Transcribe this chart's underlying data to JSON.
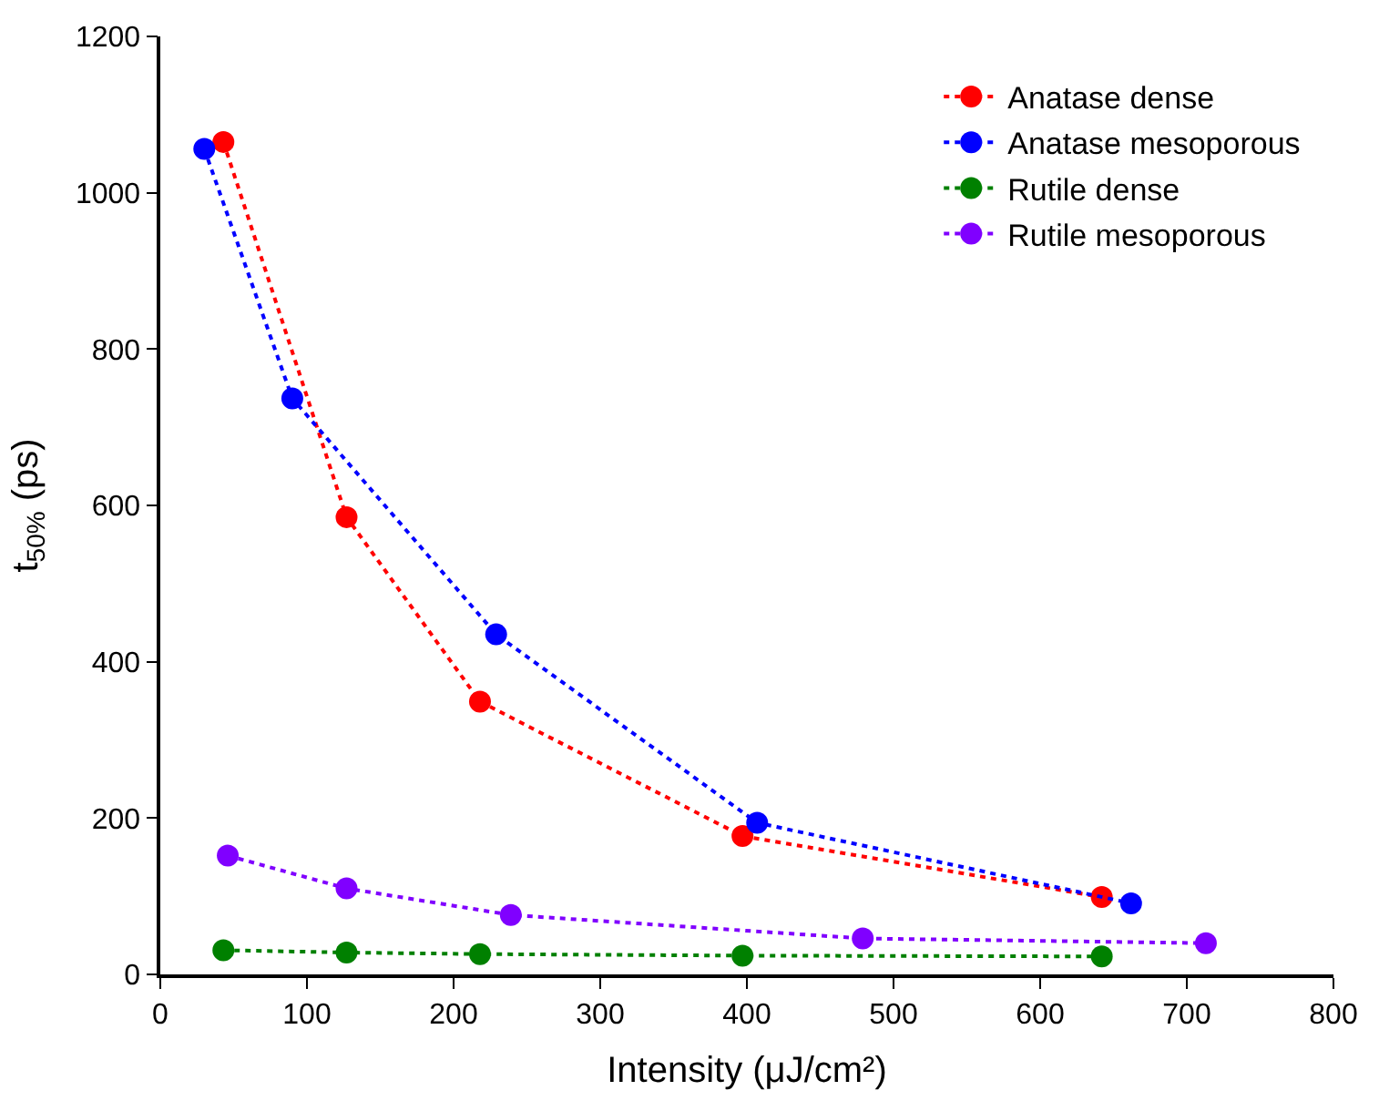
{
  "chart_data": {
    "type": "line",
    "xlabel": "Intensity (μJ/cm²)",
    "ylabel": "t$_{50%}$ (ps)",
    "xlim": [
      0,
      800
    ],
    "xticks": [
      0,
      100,
      200,
      300,
      400,
      500,
      600,
      700,
      800
    ],
    "ylim": [
      0,
      1200
    ],
    "yticks": [
      0,
      200,
      400,
      600,
      800,
      1000,
      1200
    ],
    "grid": false,
    "legend": "top right",
    "marker": "circle",
    "line_style": "dotted",
    "series": [
      {
        "name": "Anatase dense",
        "color": "#ff0000",
        "x": [
          43,
          127,
          218,
          397,
          642
        ],
        "values": [
          1065,
          585,
          349,
          177,
          99
        ]
      },
      {
        "name": "Anatase mesoporous",
        "color": "#0000ff",
        "x": [
          30,
          90,
          229,
          407,
          662
        ],
        "values": [
          1056,
          737,
          435,
          194,
          91
        ]
      },
      {
        "name": "Rutile dense",
        "color": "#008000",
        "x": [
          43,
          127,
          218,
          397,
          642
        ],
        "values": [
          31,
          28,
          26,
          24,
          23
        ]
      },
      {
        "name": "Rutile mesoporous",
        "color": "#8000ff",
        "x": [
          46,
          127,
          239,
          479,
          713
        ],
        "values": [
          152,
          110,
          76,
          46,
          40
        ]
      }
    ]
  }
}
